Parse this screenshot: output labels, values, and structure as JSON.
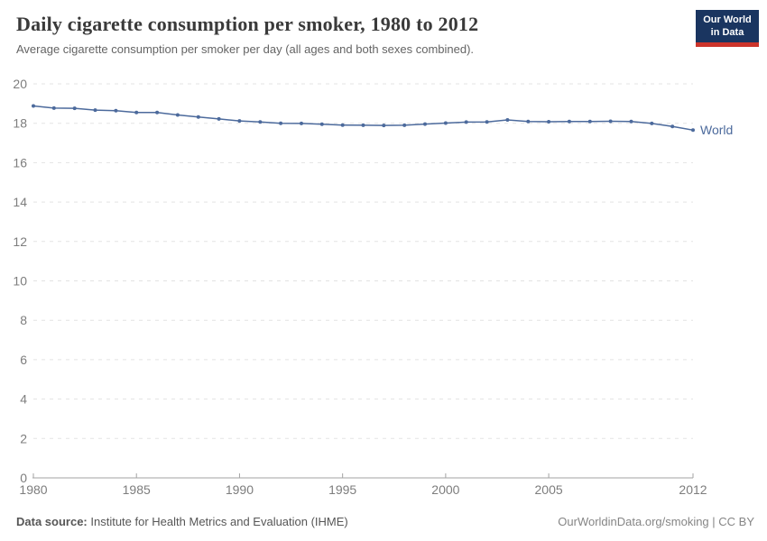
{
  "chart_data": {
    "type": "line",
    "title": "Daily cigarette consumption per smoker, 1980 to 2012",
    "subtitle": "Average cigarette consumption per smoker per day (all ages and both sexes combined).",
    "x": [
      1980,
      1981,
      1982,
      1983,
      1984,
      1985,
      1986,
      1987,
      1988,
      1989,
      1990,
      1991,
      1992,
      1993,
      1994,
      1995,
      1996,
      1997,
      1998,
      1999,
      2000,
      2001,
      2002,
      2003,
      2004,
      2005,
      2006,
      2007,
      2008,
      2009,
      2010,
      2011,
      2012
    ],
    "series": [
      {
        "name": "World",
        "color": "#4C6A9C",
        "values": [
          18.88,
          18.77,
          18.76,
          18.67,
          18.64,
          18.55,
          18.55,
          18.42,
          18.32,
          18.22,
          18.12,
          18.07,
          18.0,
          17.99,
          17.95,
          17.91,
          17.9,
          17.89,
          17.9,
          17.96,
          18.01,
          18.06,
          18.07,
          18.17,
          18.09,
          18.08,
          18.09,
          18.09,
          18.1,
          18.09,
          17.99,
          17.84,
          17.65
        ]
      }
    ],
    "xticks": [
      1980,
      1985,
      1990,
      1995,
      2000,
      2005,
      2012
    ],
    "yticks": [
      0,
      2,
      4,
      6,
      8,
      10,
      12,
      14,
      16,
      18,
      20
    ],
    "xlim": [
      1980,
      2012
    ],
    "ylim": [
      0,
      20
    ],
    "xlabel": "",
    "ylabel": "",
    "grid": "horizontal-dashed",
    "legend": "line-end-label"
  },
  "logo": {
    "line1": "Our World",
    "line2": "in Data",
    "bg_color": "#1a3560",
    "accent_color": "#cc342b"
  },
  "footer": {
    "source_label": "Data source:",
    "source_text": "Institute for Health Metrics and Evaluation (IHME)",
    "credit": "OurWorldinData.org/smoking | CC BY"
  },
  "colors": {
    "grid": "#e3e3e3",
    "axis": "#a3a3a3",
    "tick_label": "#7d7d7d",
    "title": "#3a3a3a",
    "subtitle": "#646464"
  }
}
